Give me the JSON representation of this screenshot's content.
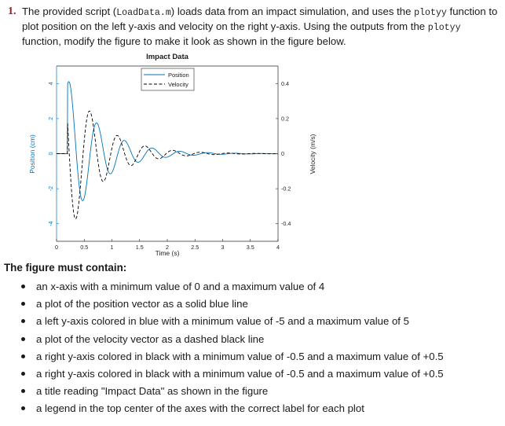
{
  "question": {
    "number": "1.",
    "text_1": "The provided script (",
    "script_name": "LoadData.m",
    "text_2": ") loads data from an impact simulation, and uses the ",
    "func_1": "plotyy",
    "text_3": " function to plot position on the left y-axis and velocity on the right y-axis. Using the outputs from the ",
    "func_2": "plotyy",
    "text_4": " function, modify the figure to make it look as shown in the figure below."
  },
  "chart_data": {
    "type": "line",
    "title": "Impact Data",
    "xlabel": "Time (s)",
    "ylabel_left": "Position (cm)",
    "ylabel_right": "Velocity (m/s)",
    "xlim": [
      0,
      4
    ],
    "ylim_left": [
      -5,
      5
    ],
    "ylim_right": [
      -0.5,
      0.5
    ],
    "x_ticks": [
      "0",
      "0.5",
      "1",
      "1.5",
      "2",
      "2.5",
      "3",
      "3.5",
      "4"
    ],
    "y_left_ticks": [
      "4",
      "2",
      "0",
      "-2",
      "-4"
    ],
    "y_right_ticks": [
      "0.4",
      "0.2",
      "0",
      "-0.2",
      "-0.4"
    ],
    "legend_position": "top-center",
    "series": [
      {
        "name": "Position",
        "axis": "left",
        "style": "solid",
        "color": "#0072bd",
        "model": {
          "amplitude": 4.3,
          "decay": 1.7,
          "frequency_hz": 2.0,
          "phase": -0.4,
          "t_start": 0.2
        }
      },
      {
        "name": "Velocity",
        "axis": "right",
        "style": "dashed",
        "color": "#000000",
        "model": {
          "amplitude": 0.48,
          "decay": 1.7,
          "frequency_hz": 2.0,
          "phase": 1.2,
          "t_start": 0.2
        }
      }
    ]
  },
  "requirements": {
    "title": "The figure must contain:",
    "items": [
      "an x-axis with a minimum value of 0 and a maximum value of 4",
      "a plot of the position vector as a solid blue line",
      "a left y-axis colored in blue with a minimum value of -5 and a maximum value of 5",
      "a plot of the velocity vector as a dashed black line",
      "a right y-axis colored in black with a minimum value of -0.5 and a maximum value of +0.5",
      "a right y-axis colored in black with a minimum value of -0.5 and a maximum value of +0.5",
      "a title reading \"Impact Data\" as shown in the figure",
      "a legend in the top center of the axes with the correct label for each plot"
    ]
  }
}
